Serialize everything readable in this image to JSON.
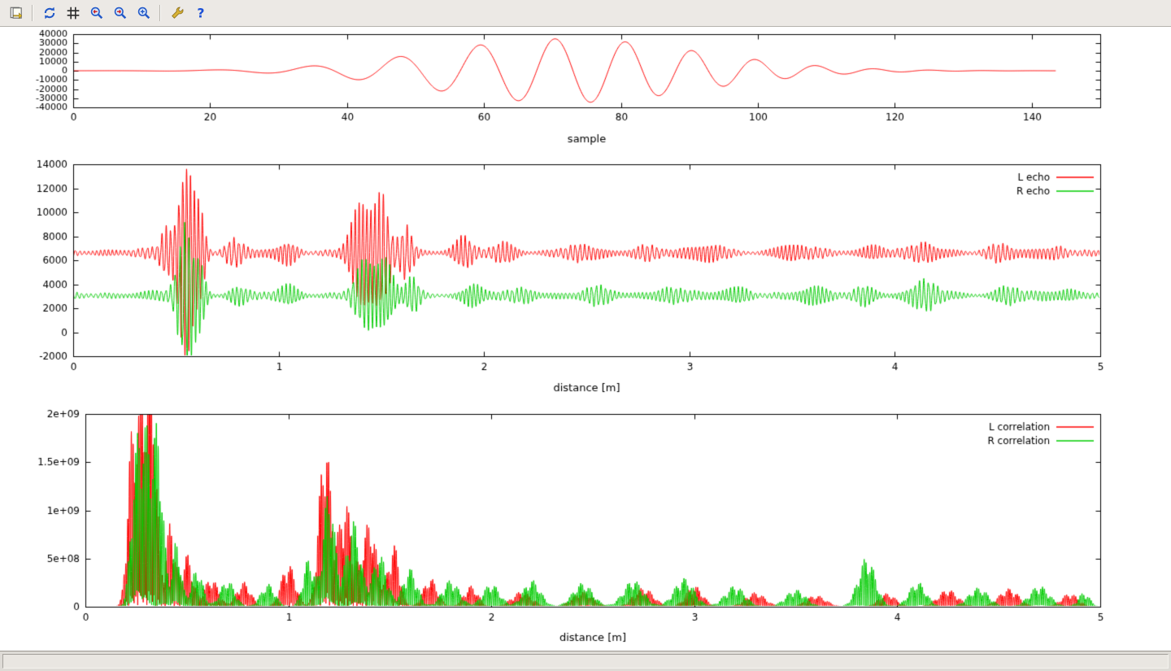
{
  "window": {
    "toolbar": {
      "buttons": [
        {
          "name": "copy-to-clipboard",
          "icon": "copy-icon"
        },
        {
          "name": "replot",
          "icon": "refresh-icon"
        },
        {
          "name": "toggle-grid",
          "icon": "grid-icon"
        },
        {
          "name": "zoom-previous",
          "icon": "zoom-previous-icon"
        },
        {
          "name": "zoom-next",
          "icon": "zoom-next-icon"
        },
        {
          "name": "autoscale",
          "icon": "zoom-reset-icon"
        },
        {
          "name": "configure",
          "icon": "wrench-icon"
        },
        {
          "name": "help",
          "icon": "help-icon"
        }
      ]
    },
    "statusbar": {
      "text": ""
    }
  },
  "colors": {
    "series_red": "#ff0000",
    "series_green": "#00cc00",
    "axis": "#000000"
  },
  "chart_data": [
    {
      "id": "chirp",
      "type": "line",
      "title": "",
      "xlabel": "sample",
      "ylabel": "",
      "xlim": [
        0,
        150
      ],
      "ylim": [
        -40000,
        40000
      ],
      "xticks": {
        "values": [
          0,
          20,
          40,
          60,
          80,
          100,
          120,
          140
        ],
        "labels": [
          "0",
          "20",
          "40",
          "60",
          "80",
          "100",
          "120",
          "140"
        ]
      },
      "yticks": {
        "values": [
          -40000,
          -30000,
          -20000,
          -10000,
          0,
          10000,
          20000,
          30000,
          40000
        ],
        "labels": [
          "-40000",
          "-30000",
          "-20000",
          "-10000",
          "0",
          "10000",
          "20000",
          "30000",
          "40000"
        ]
      },
      "grid": false,
      "legend": false,
      "series": [
        {
          "name": "",
          "color": "#ff0000",
          "generator": "chirp",
          "params": {
            "x0": 0,
            "x1": 143.5,
            "n": 1600,
            "amp": 35000,
            "center": 72,
            "sigma": 27,
            "f0": 0.055,
            "f1": 0.135
          }
        }
      ]
    },
    {
      "id": "echo",
      "type": "line",
      "title": "",
      "xlabel": "distance [m]",
      "ylabel": "",
      "xlim": [
        0,
        5
      ],
      "ylim": [
        -2000,
        14000
      ],
      "xticks": {
        "values": [
          0,
          1,
          2,
          3,
          4,
          5
        ],
        "labels": [
          "0",
          "1",
          "2",
          "3",
          "4",
          "5"
        ]
      },
      "yticks": {
        "values": [
          -2000,
          0,
          2000,
          4000,
          6000,
          8000,
          10000,
          12000,
          14000
        ],
        "labels": [
          "-2000",
          "0",
          "2000",
          "4000",
          "6000",
          "8000",
          "10000",
          "12000",
          "14000"
        ]
      },
      "grid": false,
      "legend": true,
      "series": [
        {
          "name": "L echo",
          "color": "#ff0000",
          "generator": "echo",
          "params": {
            "x0": 0,
            "x1": 5,
            "n": 5200,
            "seed": 11,
            "baseline": 6600,
            "base": 230,
            "wl": 0.021,
            "bursts": [
              [
                0.55,
                0.05,
                7300
              ],
              [
                0.62,
                0.03,
                2500
              ],
              [
                0.45,
                0.03,
                1500
              ],
              [
                1.4,
                0.06,
                3600
              ],
              [
                1.5,
                0.05,
                3800
              ],
              [
                1.62,
                0.04,
                1800
              ],
              [
                0.78,
                0.05,
                800
              ],
              [
                1.05,
                0.05,
                600
              ],
              [
                1.9,
                0.05,
                900
              ],
              [
                2.1,
                0.06,
                500
              ],
              [
                2.45,
                0.06,
                400
              ],
              [
                2.8,
                0.07,
                450
              ],
              [
                3.1,
                0.07,
                400
              ],
              [
                3.5,
                0.07,
                350
              ],
              [
                3.9,
                0.06,
                400
              ],
              [
                4.15,
                0.06,
                500
              ],
              [
                4.5,
                0.07,
                400
              ],
              [
                4.8,
                0.05,
                350
              ]
            ]
          }
        },
        {
          "name": "R echo",
          "color": "#00cc00",
          "generator": "echo",
          "params": {
            "x0": 0,
            "x1": 5,
            "n": 5200,
            "seed": 21,
            "baseline": 3050,
            "base": 210,
            "wl": 0.0205,
            "bursts": [
              [
                0.55,
                0.05,
                5000
              ],
              [
                0.62,
                0.03,
                1800
              ],
              [
                1.42,
                0.06,
                2400
              ],
              [
                1.52,
                0.05,
                2200
              ],
              [
                1.65,
                0.04,
                1200
              ],
              [
                0.8,
                0.05,
                500
              ],
              [
                1.05,
                0.05,
                500
              ],
              [
                1.95,
                0.05,
                600
              ],
              [
                2.2,
                0.06,
                450
              ],
              [
                2.55,
                0.07,
                400
              ],
              [
                2.9,
                0.07,
                500
              ],
              [
                3.25,
                0.07,
                400
              ],
              [
                3.6,
                0.07,
                400
              ],
              [
                3.85,
                0.06,
                600
              ],
              [
                4.15,
                0.07,
                900
              ],
              [
                4.55,
                0.07,
                450
              ],
              [
                4.85,
                0.05,
                350
              ]
            ]
          }
        }
      ]
    },
    {
      "id": "correlation",
      "type": "line",
      "title": "",
      "xlabel": "distance [m]",
      "ylabel": "",
      "xlim": [
        0,
        5
      ],
      "ylim": [
        0,
        2000000000.0
      ],
      "xticks": {
        "values": [
          0,
          1,
          2,
          3,
          4,
          5
        ],
        "labels": [
          "0",
          "1",
          "2",
          "3",
          "4",
          "5"
        ]
      },
      "yticks": {
        "values": [
          0,
          500000000.0,
          1000000000.0,
          1500000000.0,
          2000000000.0
        ],
        "labels": [
          "0",
          "5e+08",
          "1e+09",
          "1.5e+09",
          "2e+09"
        ]
      },
      "grid": false,
      "legend": true,
      "series": [
        {
          "name": "L correlation",
          "color": "#ff0000",
          "generator": "correlation",
          "params": {
            "x0": 0,
            "x1": 5,
            "n": 7000,
            "seed": 31,
            "wl": 0.018,
            "bumps": [
              [
                0.22,
                0.025,
                900000000.0
              ],
              [
                0.27,
                0.05,
                2100000000.0
              ],
              [
                0.33,
                0.035,
                1900000000.0
              ],
              [
                0.42,
                0.03,
                900000000.0
              ],
              [
                0.5,
                0.04,
                550000000.0
              ],
              [
                0.62,
                0.05,
                300000000.0
              ],
              [
                0.78,
                0.05,
                260000000.0
              ],
              [
                1.0,
                0.05,
                450000000.0
              ],
              [
                1.18,
                0.04,
                1780000000.0
              ],
              [
                1.28,
                0.05,
                1100000000.0
              ],
              [
                1.4,
                0.05,
                900000000.0
              ],
              [
                1.52,
                0.04,
                650000000.0
              ],
              [
                1.7,
                0.05,
                300000000.0
              ],
              [
                1.9,
                0.05,
                220000000.0
              ],
              [
                2.15,
                0.07,
                160000000.0
              ],
              [
                2.45,
                0.07,
                160000000.0
              ],
              [
                2.75,
                0.07,
                200000000.0
              ],
              [
                3.0,
                0.06,
                220000000.0
              ],
              [
                3.3,
                0.07,
                150000000.0
              ],
              [
                3.6,
                0.07,
                120000000.0
              ],
              [
                3.95,
                0.06,
                140000000.0
              ],
              [
                4.25,
                0.07,
                180000000.0
              ],
              [
                4.55,
                0.07,
                190000000.0
              ],
              [
                4.85,
                0.06,
                140000000.0
              ]
            ]
          }
        },
        {
          "name": "R correlation",
          "color": "#00cc00",
          "generator": "correlation",
          "params": {
            "x0": 0,
            "x1": 5,
            "n": 7000,
            "seed": 41,
            "wl": 0.0185,
            "bumps": [
              [
                0.24,
                0.03,
                800000000.0
              ],
              [
                0.29,
                0.05,
                1900000000.0
              ],
              [
                0.36,
                0.035,
                1600000000.0
              ],
              [
                0.45,
                0.03,
                700000000.0
              ],
              [
                0.55,
                0.04,
                400000000.0
              ],
              [
                0.7,
                0.05,
                280000000.0
              ],
              [
                0.9,
                0.05,
                240000000.0
              ],
              [
                1.1,
                0.04,
                500000000.0
              ],
              [
                1.2,
                0.04,
                1250000000.0
              ],
              [
                1.32,
                0.05,
                900000000.0
              ],
              [
                1.45,
                0.05,
                550000000.0
              ],
              [
                1.6,
                0.05,
                400000000.0
              ],
              [
                1.8,
                0.06,
                280000000.0
              ],
              [
                2.0,
                0.06,
                240000000.0
              ],
              [
                2.2,
                0.06,
                280000000.0
              ],
              [
                2.45,
                0.07,
                250000000.0
              ],
              [
                2.7,
                0.07,
                280000000.0
              ],
              [
                2.95,
                0.07,
                300000000.0
              ],
              [
                3.2,
                0.07,
                220000000.0
              ],
              [
                3.5,
                0.07,
                180000000.0
              ],
              [
                3.85,
                0.06,
                520000000.0
              ],
              [
                4.1,
                0.06,
                260000000.0
              ],
              [
                4.4,
                0.07,
                200000000.0
              ],
              [
                4.7,
                0.07,
                220000000.0
              ],
              [
                4.92,
                0.04,
                150000000.0
              ]
            ]
          }
        }
      ]
    }
  ]
}
